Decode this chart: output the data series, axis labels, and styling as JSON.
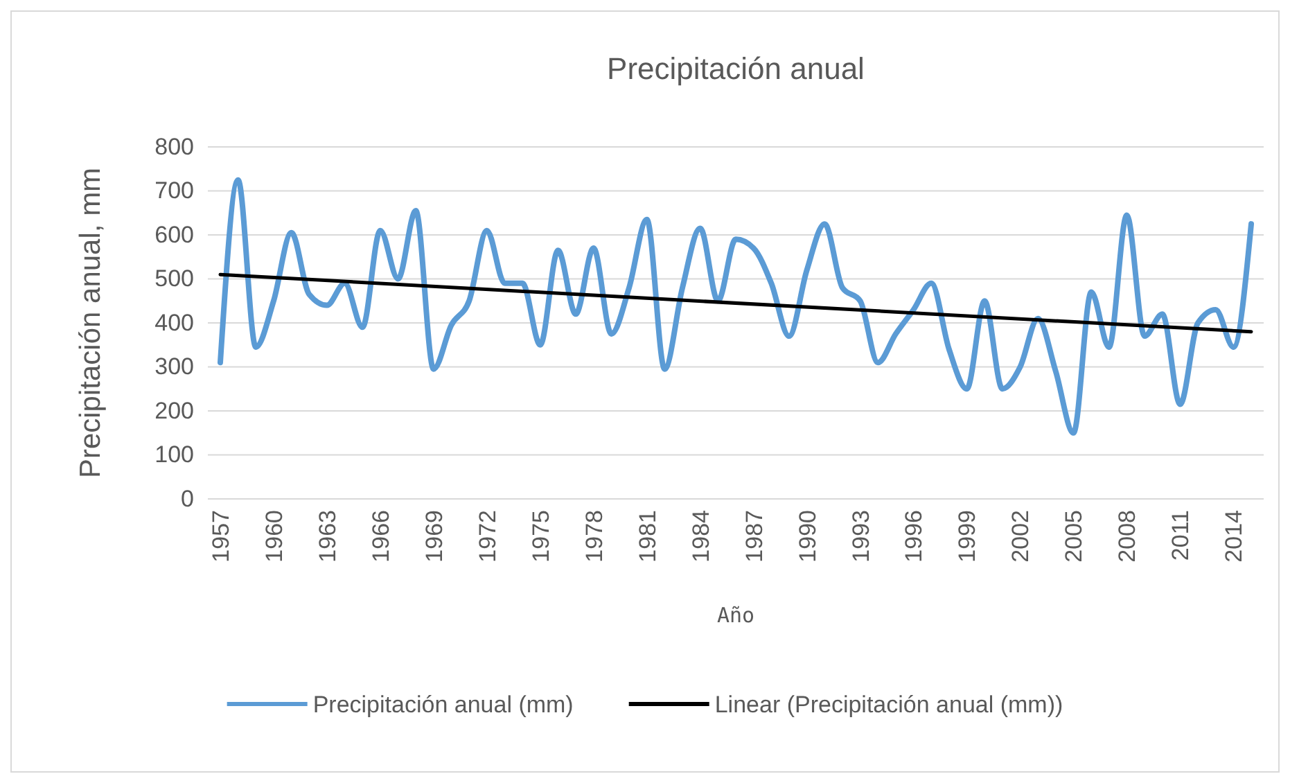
{
  "chart_data": {
    "type": "line",
    "title": "Precipitación anual",
    "xlabel": "Año",
    "ylabel": "Precipitación anual, mm",
    "x": [
      1957,
      1958,
      1959,
      1960,
      1961,
      1962,
      1963,
      1964,
      1965,
      1966,
      1967,
      1968,
      1969,
      1970,
      1971,
      1972,
      1973,
      1974,
      1975,
      1976,
      1977,
      1978,
      1979,
      1980,
      1981,
      1982,
      1983,
      1984,
      1985,
      1986,
      1987,
      1988,
      1989,
      1990,
      1991,
      1992,
      1993,
      1994,
      1995,
      1996,
      1997,
      1998,
      1999,
      2000,
      2001,
      2002,
      2003,
      2004,
      2005,
      2006,
      2007,
      2008,
      2009,
      2010,
      2011,
      2012,
      2013,
      2014,
      2015
    ],
    "series": [
      {
        "name": "Precipitación anual (mm)",
        "color": "#5b9bd5",
        "values": [
          310,
          725,
          345,
          450,
          605,
          465,
          440,
          490,
          390,
          610,
          500,
          655,
          295,
          395,
          450,
          610,
          490,
          490,
          350,
          565,
          420,
          570,
          375,
          480,
          635,
          295,
          480,
          615,
          450,
          590,
          570,
          490,
          370,
          520,
          625,
          480,
          450,
          310,
          375,
          430,
          490,
          340,
          250,
          450,
          250,
          300,
          410,
          290,
          150,
          470,
          345,
          645,
          370,
          420,
          215,
          400,
          430,
          345,
          625
        ]
      },
      {
        "name": "Linear (Precipitación anual (mm))",
        "type": "line",
        "color": "#000000",
        "x": [
          1957,
          2015
        ],
        "values": [
          510,
          380
        ]
      }
    ],
    "xlim": [
      1956.3,
      2015.7
    ],
    "xticks": [
      1957,
      1960,
      1963,
      1966,
      1969,
      1972,
      1975,
      1978,
      1981,
      1984,
      1987,
      1990,
      1993,
      1996,
      1999,
      2002,
      2005,
      2008,
      2011,
      2014
    ],
    "ylim": [
      0,
      800
    ],
    "yticks": [
      0,
      100,
      200,
      300,
      400,
      500,
      600,
      700,
      800
    ],
    "grid": "y",
    "legend": "bottom",
    "marker": "none",
    "line_style": "solid"
  }
}
